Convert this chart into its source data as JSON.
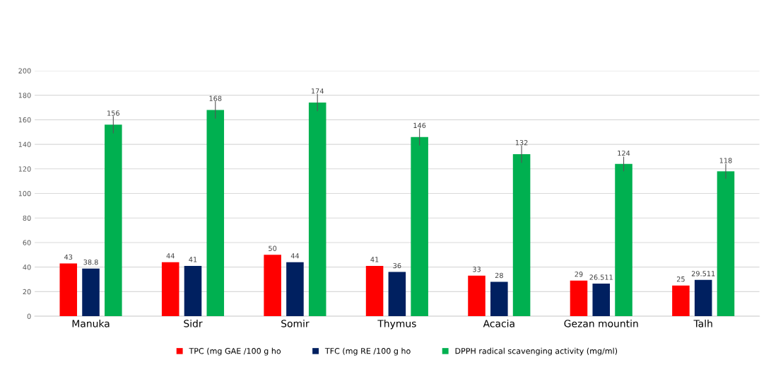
{
  "chart_data": {
    "type": "bar",
    "categories": [
      "Manuka",
      "Sidr",
      "Somir",
      "Thymus",
      "Acacia",
      "Gezan mountin",
      "Talh"
    ],
    "series": [
      {
        "name": "TPC (mg GAE /100 g ho",
        "color": "#ff0000",
        "values": [
          43,
          44,
          50,
          41,
          33,
          29,
          25
        ]
      },
      {
        "name": "TFC (mg RE /100 g ho",
        "color": "#002060",
        "values": [
          38.8,
          41,
          44,
          36,
          28,
          26.511,
          29.511
        ]
      },
      {
        "name": "DPPH radical scavenging activity (mg/ml)",
        "color": "#00b050",
        "values": [
          156,
          168,
          174,
          146,
          132,
          124,
          118
        ],
        "errors": [
          7,
          7,
          7,
          7,
          7,
          6,
          6
        ]
      }
    ],
    "ylim": [
      0,
      200
    ],
    "yticks": [
      0,
      20,
      40,
      60,
      80,
      100,
      120,
      140,
      160,
      180,
      200
    ],
    "grid": "y",
    "legend": "bottom",
    "data_labels": true
  }
}
